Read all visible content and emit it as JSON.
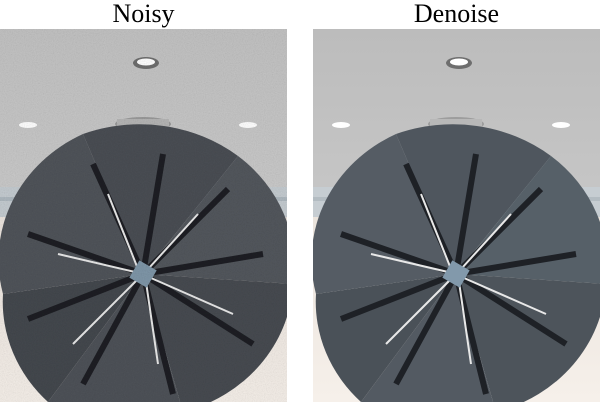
{
  "panels": [
    {
      "caption": "Noisy"
    },
    {
      "caption": "Denoise"
    }
  ],
  "colors": {
    "ceiling": "#c9c9c9",
    "floor": "#efe8e2",
    "horizon": "#c4cbd0",
    "sculpture_noisy": "#4a4e54",
    "sculpture_denoise": "#4f565e"
  },
  "icons": [
    "ceiling-light-icon",
    "sculpture-disc"
  ]
}
